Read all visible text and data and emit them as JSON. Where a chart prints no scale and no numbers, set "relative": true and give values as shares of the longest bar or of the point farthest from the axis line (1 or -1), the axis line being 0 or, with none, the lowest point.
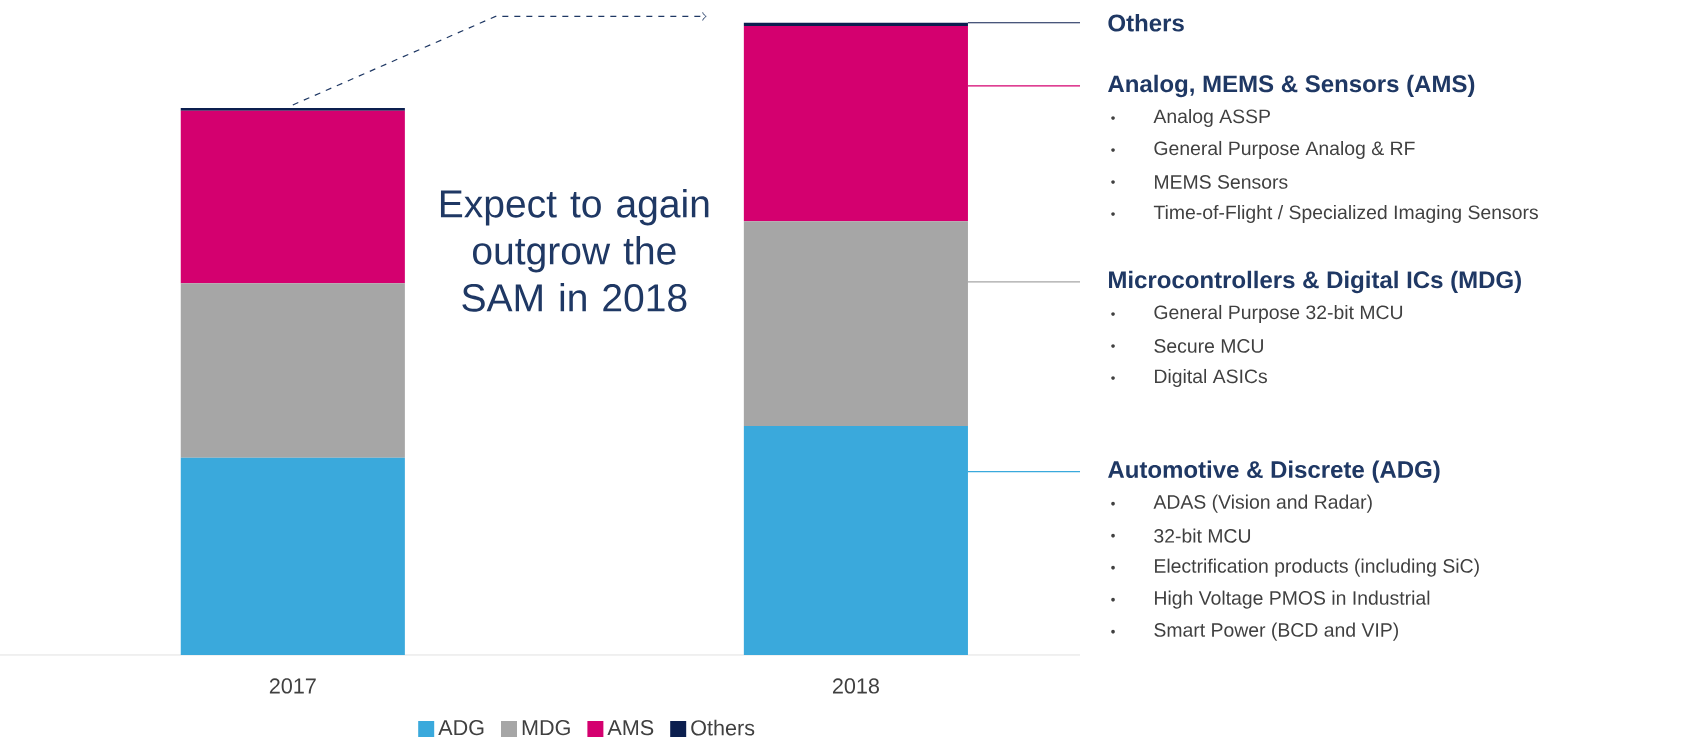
{
  "chart_data": {
    "type": "bar",
    "stacked": true,
    "relative": true,
    "categories": [
      "2017",
      "2018"
    ],
    "series": [
      {
        "name": "ADG",
        "color": "#3aa9dc",
        "values": [
          0.312,
          0.362
        ]
      },
      {
        "name": "MDG",
        "color": "#a6a6a6",
        "values": [
          0.276,
          0.324
        ]
      },
      {
        "name": "AMS",
        "color": "#d4006f",
        "values": [
          0.273,
          0.309
        ]
      },
      {
        "name": "Others",
        "color": "#0c1f4f",
        "values": [
          0.004,
          0.005
        ]
      }
    ],
    "legend": "bottom",
    "annotations": [
      "Expect to again outgrow the SAM in 2018",
      "Others",
      "Analog, MEMS & Sensors (AMS)",
      "Analog ASSP",
      "General Purpose Analog & RF",
      "MEMS Sensors",
      "Time-of-Flight / Specialized Imaging Sensors",
      "Microcontrollers & Digital ICs (MDG)",
      "General Purpose 32-bit MCU",
      "Secure MCU",
      "Digital ASICs",
      "Automotive & Discrete (ADG)",
      "ADAS (Vision and Radar)",
      "32-bit MCU",
      "Electrification products (including SiC)",
      "High Voltage PMOS in Industrial",
      "Smart Power (BCD and VIP)"
    ]
  }
}
